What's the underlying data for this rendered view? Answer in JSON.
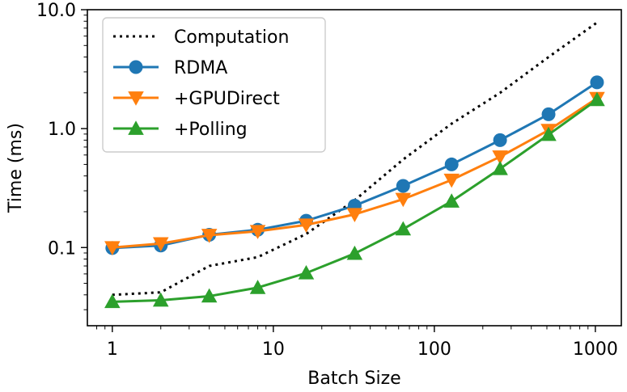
{
  "chart_data": {
    "type": "line",
    "x_scale": "log",
    "y_scale": "log",
    "xlabel": "Batch Size",
    "ylabel": "Time (ms)",
    "xlim": [
      0.7,
      1450
    ],
    "ylim": [
      0.022,
      10.0
    ],
    "x_ticks": [
      1,
      10,
      100,
      1000
    ],
    "x_tick_labels": [
      "1",
      "10",
      "100",
      "1000"
    ],
    "y_ticks": [
      0.1,
      1.0,
      10.0
    ],
    "y_tick_labels": [
      "0.1",
      "1.0",
      "10.0"
    ],
    "grid": false,
    "legend_position": "top-left",
    "x": [
      1,
      2,
      4,
      8,
      16,
      32,
      64,
      128,
      256,
      512,
      1024
    ],
    "series": [
      {
        "name": "Computation",
        "color": "#000000",
        "line_style": "dotted",
        "marker": "none",
        "values": [
          0.04,
          0.042,
          0.07,
          0.083,
          0.13,
          0.25,
          0.55,
          1.1,
          2.0,
          4.0,
          7.8
        ]
      },
      {
        "name": "RDMA",
        "color": "#1f77b4",
        "line_style": "solid",
        "marker": "circle",
        "values": [
          0.099,
          0.104,
          0.128,
          0.141,
          0.168,
          0.225,
          0.33,
          0.5,
          0.8,
          1.32,
          2.45
        ]
      },
      {
        "name": "+GPUDirect",
        "color": "#ff7f0e",
        "line_style": "solid",
        "marker": "triangle-down",
        "values": [
          0.1,
          0.108,
          0.127,
          0.137,
          0.155,
          0.19,
          0.255,
          0.37,
          0.58,
          0.97,
          1.8
        ]
      },
      {
        "name": "+Polling",
        "color": "#2ca02c",
        "line_style": "solid",
        "marker": "triangle-up",
        "values": [
          0.035,
          0.036,
          0.039,
          0.046,
          0.061,
          0.089,
          0.143,
          0.245,
          0.46,
          0.89,
          1.75
        ]
      }
    ]
  }
}
